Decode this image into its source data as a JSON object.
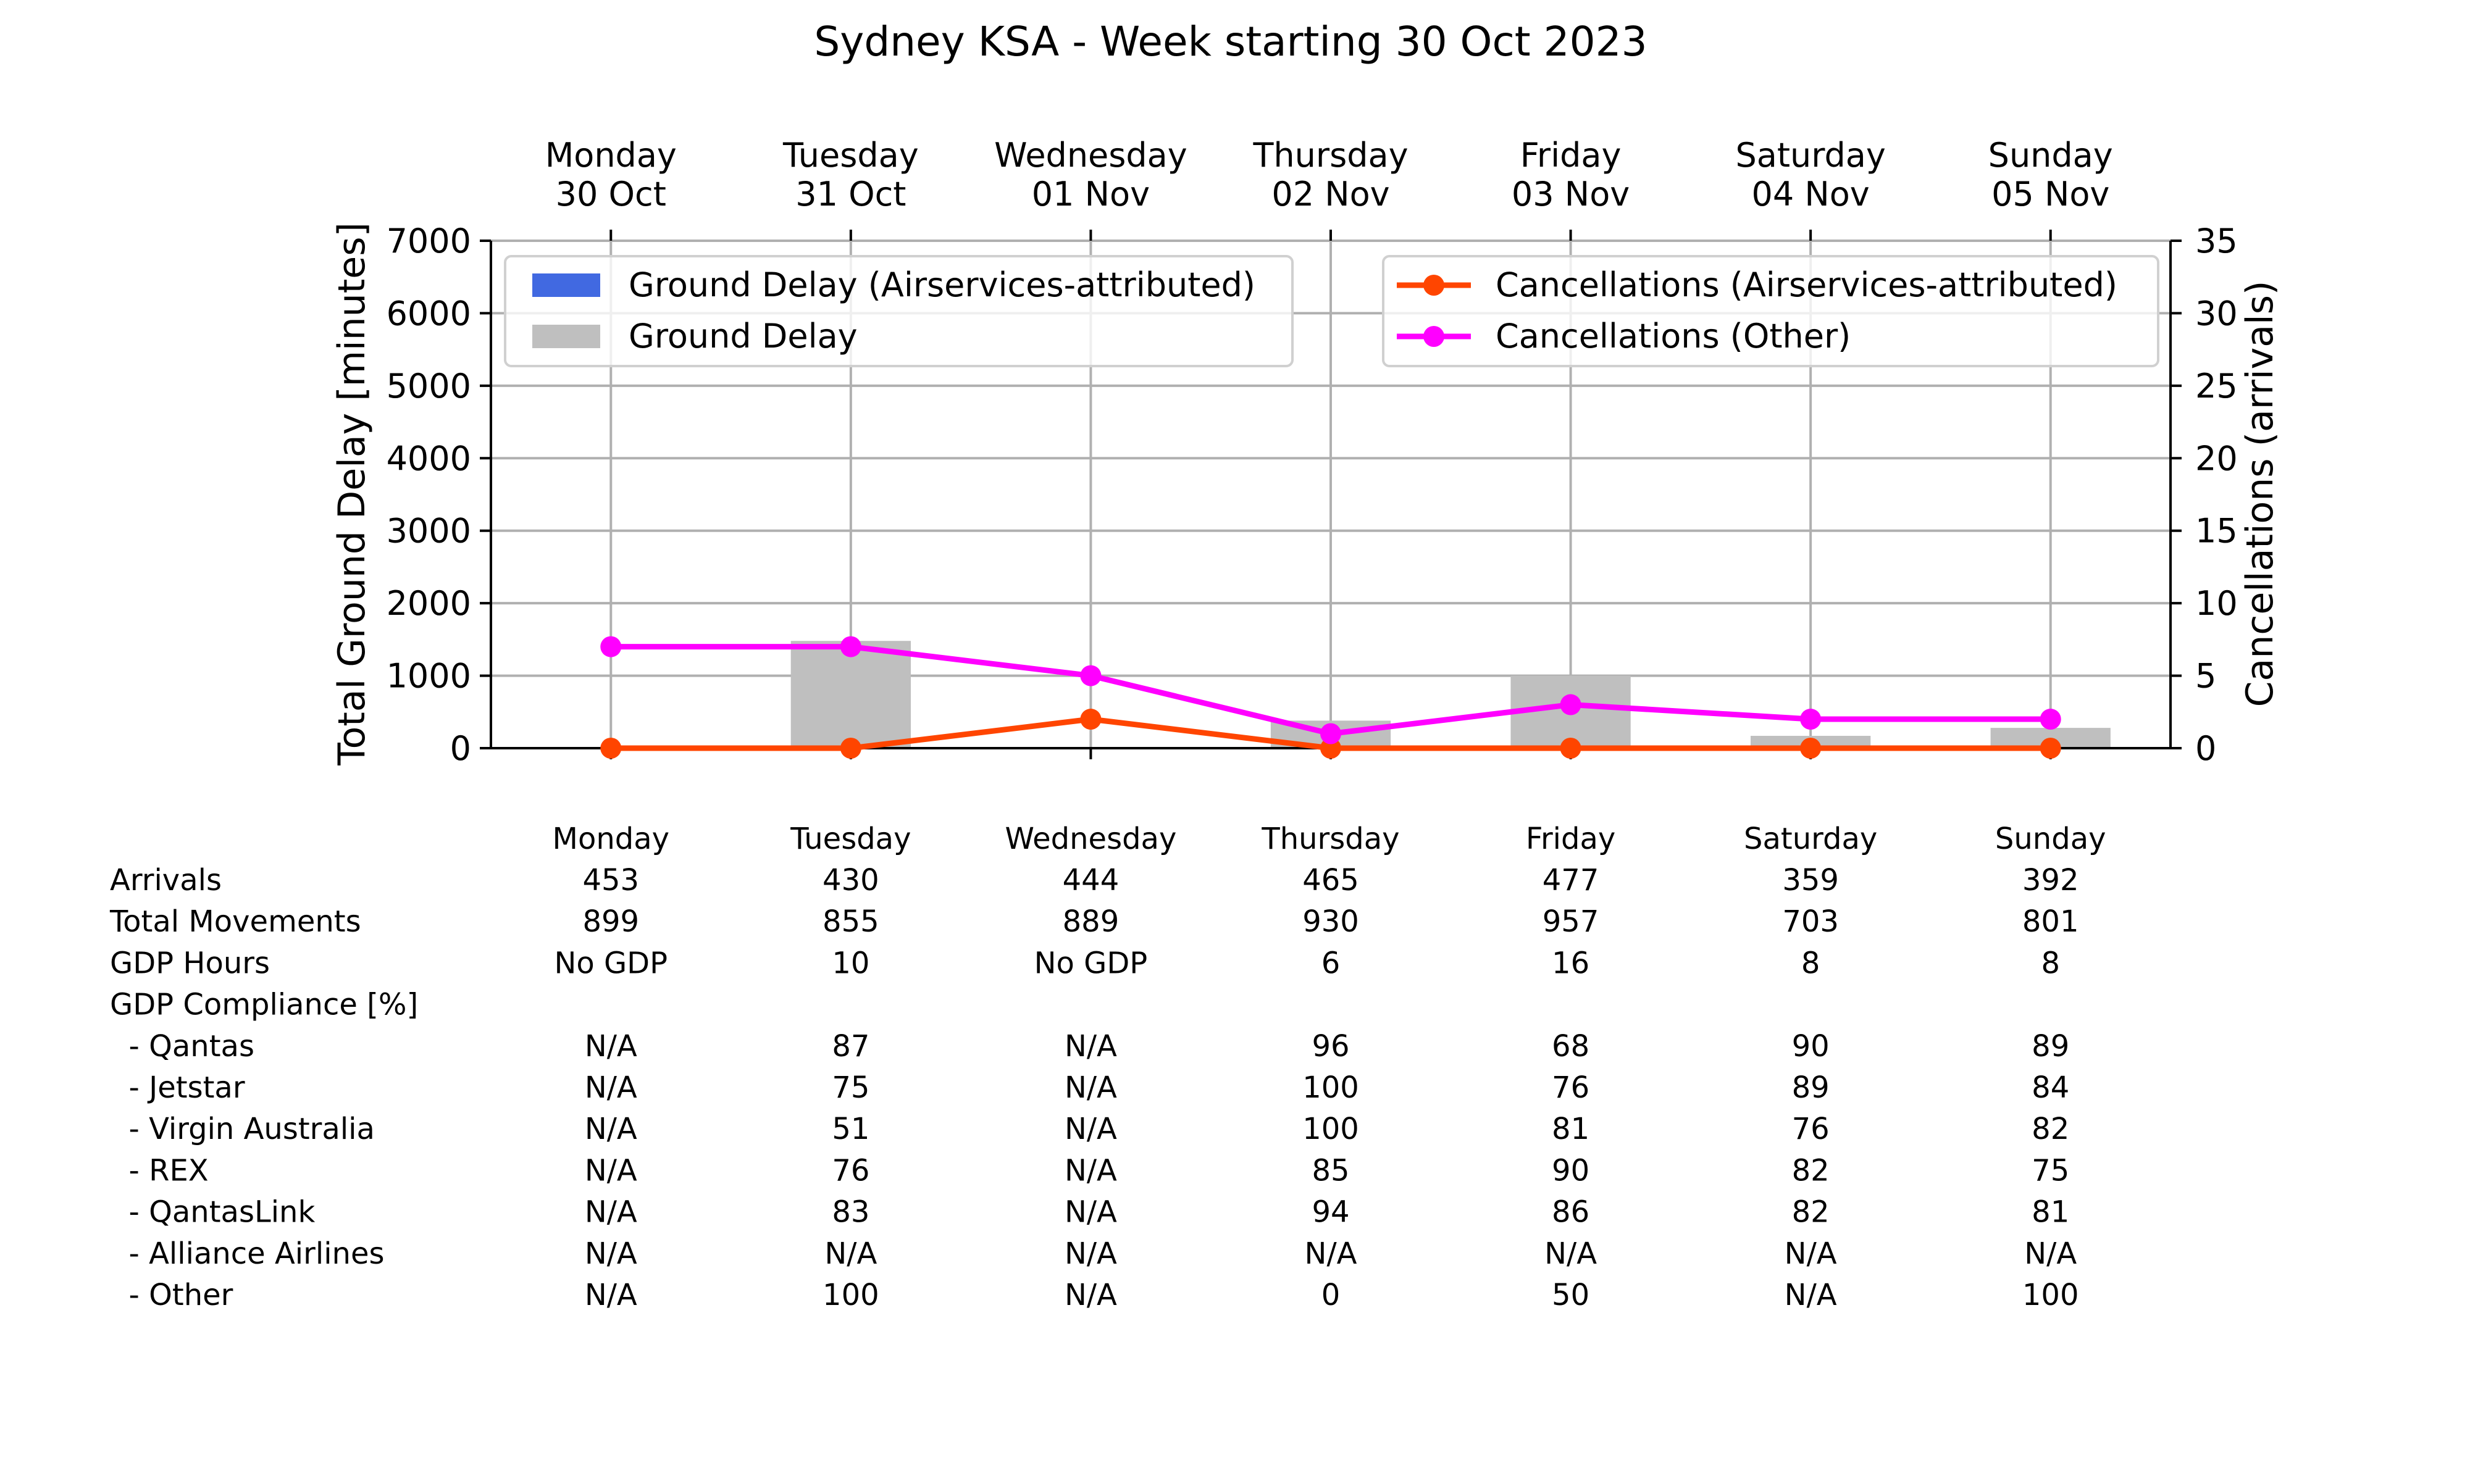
{
  "chart_data": {
    "type": "bar",
    "title": "Sydney KSA - Week starting 30 Oct 2023",
    "categories": [
      [
        "Monday",
        "30 Oct"
      ],
      [
        "Tuesday",
        "31 Oct"
      ],
      [
        "Wednesday",
        "01 Nov"
      ],
      [
        "Thursday",
        "02 Nov"
      ],
      [
        "Friday",
        "03 Nov"
      ],
      [
        "Saturday",
        "04 Nov"
      ],
      [
        "Sunday",
        "05 Nov"
      ]
    ],
    "ylabel": "Total Ground Delay [minutes]",
    "ylabel_right": "Cancellations (arrivals)",
    "ylim": [
      0,
      7000
    ],
    "ylim_right": [
      0,
      35
    ],
    "yticks": [
      0,
      1000,
      2000,
      3000,
      4000,
      5000,
      6000,
      7000
    ],
    "yticks_right": [
      0,
      5,
      10,
      15,
      20,
      25,
      30,
      35
    ],
    "grid": true,
    "series": [
      {
        "name": "Ground Delay (Airservices-attributed)",
        "kind": "bar",
        "axis": "left",
        "color": "#4169E1",
        "values": [
          0,
          0,
          0,
          0,
          0,
          0,
          0
        ]
      },
      {
        "name": "Ground Delay",
        "kind": "bar",
        "axis": "left",
        "color": "#BFBFBF",
        "values": [
          0,
          1480,
          0,
          380,
          1000,
          170,
          280
        ]
      },
      {
        "name": "Cancellations (Airservices-attributed)",
        "kind": "line",
        "axis": "right",
        "color": "#FF4500",
        "values": [
          0,
          0,
          2,
          0,
          0,
          0,
          0
        ]
      },
      {
        "name": "Cancellations (Other)",
        "kind": "line",
        "axis": "right",
        "color": "#FF00FF",
        "values": [
          7,
          7,
          5,
          1,
          3,
          2,
          2
        ]
      }
    ],
    "legend_left_placement": "top-left",
    "legend_right_placement": "top-right"
  },
  "table": {
    "days": [
      "Monday",
      "Tuesday",
      "Wednesday",
      "Thursday",
      "Friday",
      "Saturday",
      "Sunday"
    ],
    "rows": [
      {
        "label": "Arrivals",
        "values": [
          "453",
          "430",
          "444",
          "465",
          "477",
          "359",
          "392"
        ]
      },
      {
        "label": "Total Movements",
        "values": [
          "899",
          "855",
          "889",
          "930",
          "957",
          "703",
          "801"
        ]
      },
      {
        "label": "GDP Hours",
        "values": [
          "No GDP",
          "10",
          "No GDP",
          "6",
          "16",
          "8",
          "8"
        ]
      },
      {
        "label": "GDP Compliance [%]",
        "values": []
      },
      {
        "label": "  - Qantas",
        "values": [
          "N/A",
          "87",
          "N/A",
          "96",
          "68",
          "90",
          "89"
        ]
      },
      {
        "label": "  - Jetstar",
        "values": [
          "N/A",
          "75",
          "N/A",
          "100",
          "76",
          "89",
          "84"
        ]
      },
      {
        "label": "  - Virgin Australia",
        "values": [
          "N/A",
          "51",
          "N/A",
          "100",
          "81",
          "76",
          "82"
        ]
      },
      {
        "label": "  - REX",
        "values": [
          "N/A",
          "76",
          "N/A",
          "85",
          "90",
          "82",
          "75"
        ]
      },
      {
        "label": "  - QantasLink",
        "values": [
          "N/A",
          "83",
          "N/A",
          "94",
          "86",
          "82",
          "81"
        ]
      },
      {
        "label": "  - Alliance Airlines",
        "values": [
          "N/A",
          "N/A",
          "N/A",
          "N/A",
          "N/A",
          "N/A",
          "N/A"
        ]
      },
      {
        "label": "  - Other",
        "values": [
          "N/A",
          "100",
          "N/A",
          "0",
          "50",
          "N/A",
          "100"
        ]
      }
    ]
  }
}
